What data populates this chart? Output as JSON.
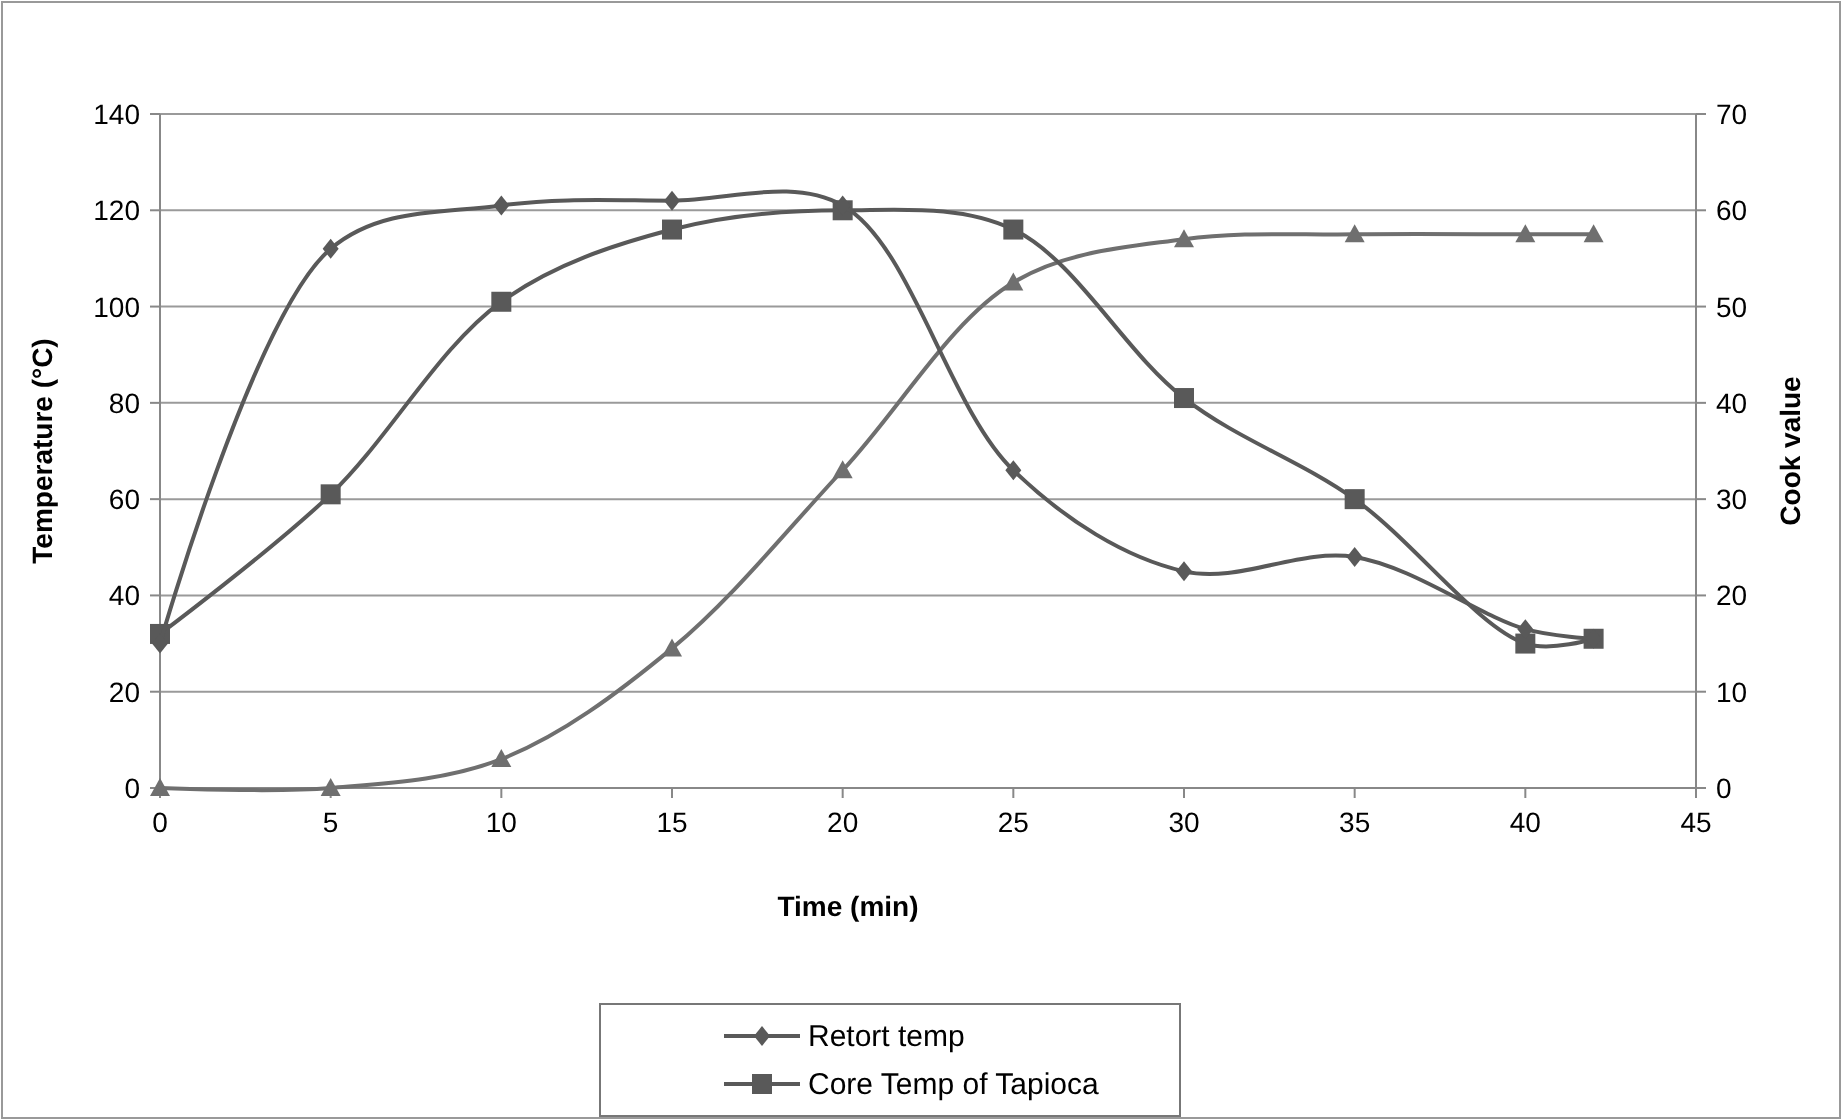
{
  "chart_data": {
    "type": "line",
    "xlabel": "Time (min)",
    "ylabel": "Temperature (°C)",
    "y2label": "Cook value",
    "xlim": [
      0,
      45
    ],
    "xticks": [
      0,
      5,
      10,
      15,
      20,
      25,
      30,
      35,
      40,
      45
    ],
    "ylim": [
      0,
      140
    ],
    "yticks": [
      0,
      20,
      40,
      60,
      80,
      100,
      120,
      140
    ],
    "y2lim": [
      0,
      70
    ],
    "y2ticks": [
      0,
      10,
      20,
      30,
      40,
      50,
      60,
      70
    ],
    "x": [
      0,
      5,
      10,
      15,
      20,
      25,
      30,
      35,
      40,
      42
    ],
    "grid": "y",
    "legend": "bottom",
    "series": [
      {
        "name": "Retort temp",
        "color": "#595959",
        "marker": "diamond",
        "values": [
          30,
          112,
          121,
          122,
          121,
          66,
          45,
          48,
          33,
          31
        ]
      },
      {
        "name": "Core Temp of Tapioca",
        "color": "#595959",
        "marker": "square",
        "values": [
          32,
          61,
          101,
          116,
          120,
          116,
          81,
          60,
          30,
          31
        ]
      },
      {
        "color": "#6f6f6f",
        "marker": "triangle",
        "axis": "y2",
        "values": [
          0,
          0,
          3,
          14.5,
          33,
          52.5,
          57,
          57.5,
          57.5,
          57.5
        ]
      }
    ]
  }
}
